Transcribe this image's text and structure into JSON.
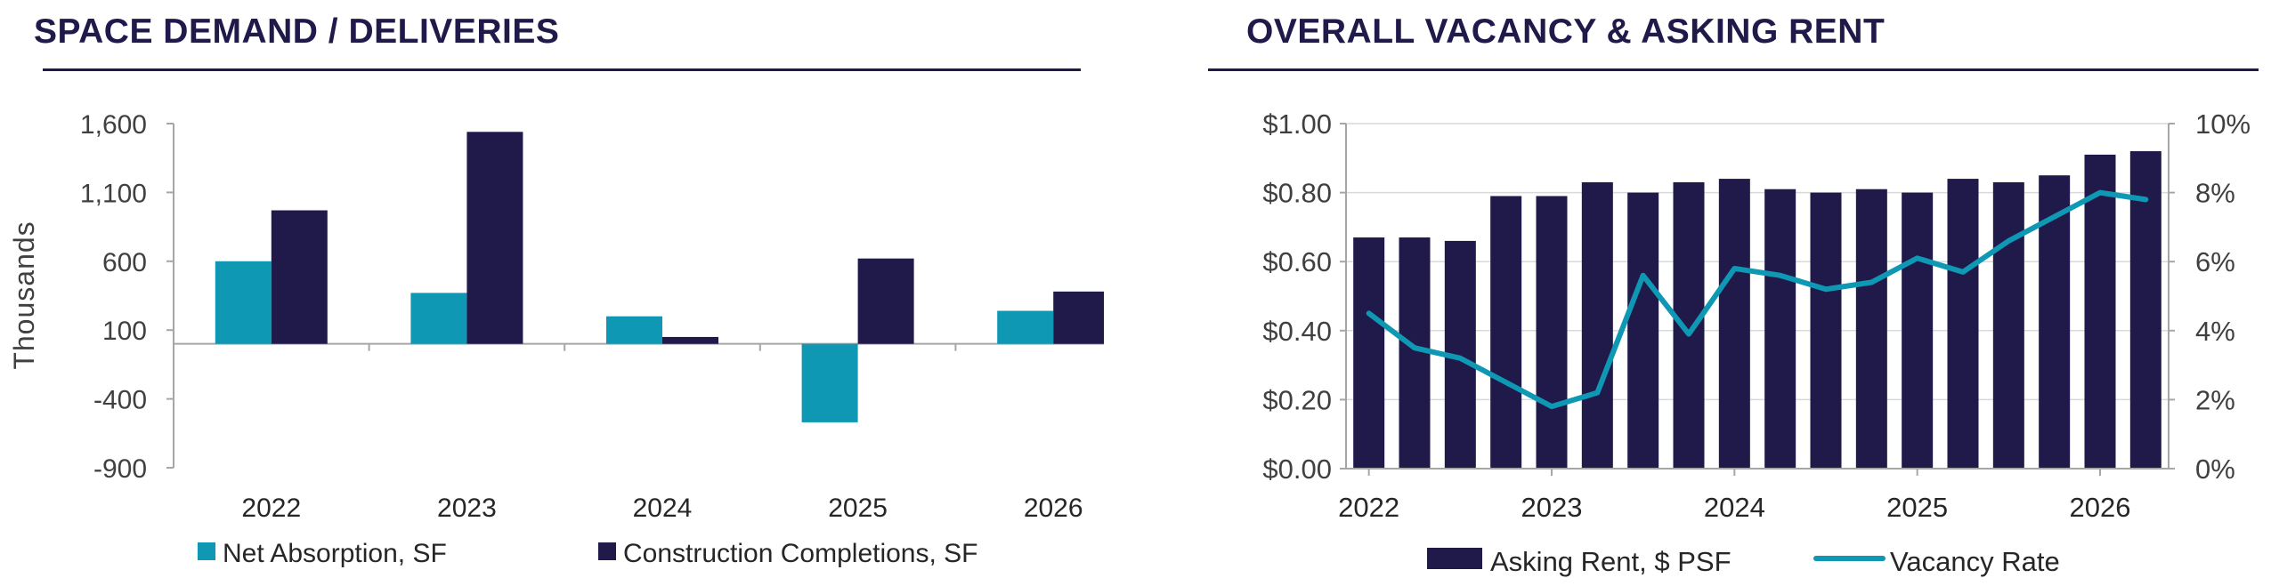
{
  "left_title": "SPACE DEMAND / DELIVERIES",
  "right_title": "OVERALL VACANCY & ASKING RENT",
  "colors": {
    "navy": "#1f1a4a",
    "teal": "#0e98b4",
    "axis": "#a6a6a6",
    "text": "#404040"
  },
  "chart_data": [
    {
      "type": "bar",
      "title": "SPACE DEMAND / DELIVERIES",
      "ylabel": "Thousands",
      "categories": [
        "2022",
        "2023",
        "2024",
        "2025",
        "2026"
      ],
      "ylim": [
        -900,
        1600
      ],
      "yticks": [
        "1,600",
        "1,100",
        "600",
        "100",
        "-400",
        "-900"
      ],
      "series": [
        {
          "name": "Net Absorption, SF",
          "color": "#0e98b4",
          "values": [
            600,
            370,
            200,
            -570,
            240
          ]
        },
        {
          "name": "Construction Completions, SF",
          "color": "#1f1a4a",
          "values": [
            970,
            1540,
            50,
            620,
            380
          ]
        }
      ],
      "legend_position": "bottom",
      "grid": false
    },
    {
      "type": "bar",
      "title": "OVERALL VACANCY & ASKING RENT",
      "x_labels": [
        "2022",
        "2023",
        "2024",
        "2025",
        "2026"
      ],
      "ylim_left": [
        0,
        1.0
      ],
      "yticks_left": [
        "$1.00",
        "$0.80",
        "$0.60",
        "$0.40",
        "$0.20",
        "$0.00"
      ],
      "ylim_right": [
        0,
        10
      ],
      "yticks_right": [
        "10%",
        "8%",
        "6%",
        "4%",
        "2%",
        "0%"
      ],
      "series": [
        {
          "name": "Asking Rent, $ PSF",
          "type": "bar",
          "axis": "left",
          "color": "#1f1a4a",
          "values": [
            0.67,
            0.67,
            0.66,
            0.79,
            0.79,
            0.83,
            0.8,
            0.83,
            0.84,
            0.81,
            0.8,
            0.81,
            0.8,
            0.84,
            0.83,
            0.85,
            0.91,
            0.92
          ]
        },
        {
          "name": "Vacancy Rate",
          "type": "line",
          "axis": "right",
          "color": "#0e98b4",
          "values": [
            4.5,
            3.5,
            3.2,
            2.5,
            1.8,
            2.2,
            5.6,
            3.9,
            5.8,
            5.6,
            5.2,
            5.4,
            6.1,
            5.7,
            6.6,
            7.3,
            8.0,
            7.8
          ]
        }
      ],
      "legend_position": "bottom",
      "grid": true
    }
  ]
}
